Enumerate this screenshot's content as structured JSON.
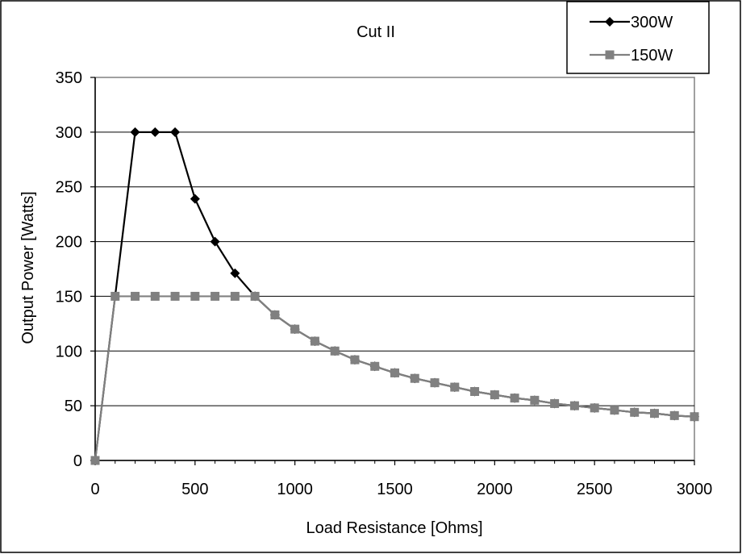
{
  "chart_data": {
    "type": "line",
    "title": "Cut II",
    "xlabel": "Load Resistance [Ohms]",
    "ylabel": "Output Power [Watts]",
    "xlim": [
      0,
      3000
    ],
    "ylim": [
      0,
      350
    ],
    "xticks": [
      "0",
      "500",
      "1000",
      "1500",
      "2000",
      "2500",
      "3000"
    ],
    "yticks": [
      "0",
      "50",
      "100",
      "150",
      "200",
      "250",
      "300",
      "350"
    ],
    "grid": "horizontal",
    "legend_position": "top-right",
    "x": [
      0,
      100,
      200,
      300,
      400,
      500,
      600,
      700,
      800,
      900,
      1000,
      1100,
      1200,
      1300,
      1400,
      1500,
      1600,
      1700,
      1800,
      1900,
      2000,
      2100,
      2200,
      2300,
      2400,
      2500,
      2600,
      2700,
      2800,
      2900,
      3000
    ],
    "series": [
      {
        "name": "300W",
        "color": "#000000",
        "marker": "diamond",
        "values": [
          0,
          150,
          300,
          300,
          300,
          239,
          200,
          171,
          150,
          133,
          120,
          109,
          100,
          92,
          86,
          80,
          75,
          71,
          67,
          63,
          60,
          57,
          55,
          52,
          50,
          48,
          46,
          44,
          43,
          41,
          40
        ]
      },
      {
        "name": "150W",
        "color": "#808080",
        "marker": "square",
        "values": [
          0,
          150,
          150,
          150,
          150,
          150,
          150,
          150,
          150,
          133,
          120,
          109,
          100,
          92,
          86,
          80,
          75,
          71,
          67,
          63,
          60,
          57,
          55,
          52,
          50,
          48,
          46,
          44,
          43,
          41,
          40
        ]
      }
    ]
  }
}
